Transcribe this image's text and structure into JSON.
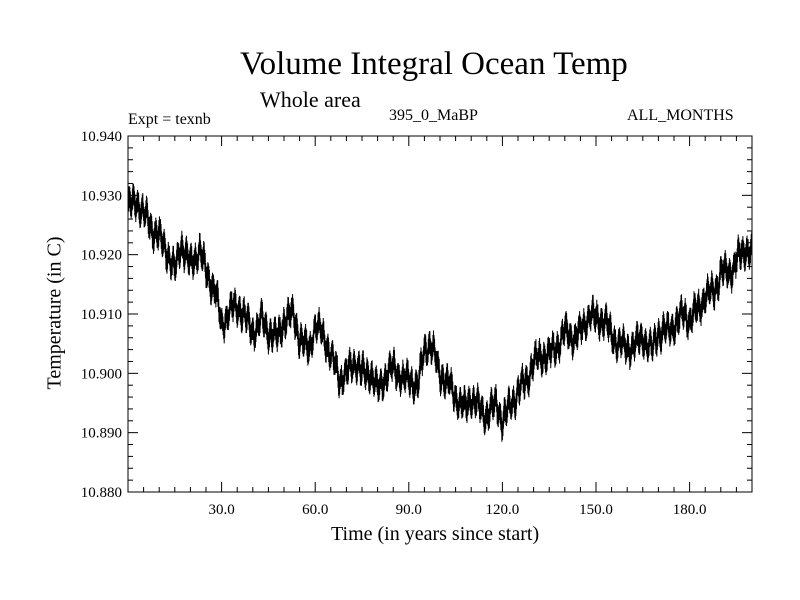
{
  "chart_data": {
    "type": "line",
    "title": "Volume Integral Ocean Temp",
    "subtitle": "Whole area",
    "annotations": {
      "left": "Expt = texnb",
      "center": "395_0_MaBP",
      "right": "ALL_MONTHS"
    },
    "xlabel": "Time (in years since start)",
    "ylabel": "Temperature (in C)",
    "xlim": [
      0,
      200
    ],
    "ylim": [
      10.88,
      10.94
    ],
    "xticks": [
      30,
      60,
      90,
      120,
      150,
      180
    ],
    "xtick_labels": [
      "30.0",
      "60.0",
      "90.0",
      "120.0",
      "150.0",
      "180.0"
    ],
    "yticks": [
      10.88,
      10.89,
      10.9,
      10.91,
      10.92,
      10.93,
      10.94
    ],
    "ytick_labels": [
      "10.880",
      "10.890",
      "10.900",
      "10.910",
      "10.920",
      "10.930",
      "10.940"
    ],
    "series": [
      {
        "name": "Volume integral ocean temperature",
        "x": [
          0,
          3,
          5,
          8,
          10,
          13,
          15,
          17,
          20,
          23,
          25,
          28,
          30,
          33,
          36,
          40,
          43,
          45,
          48,
          50,
          53,
          55,
          58,
          60,
          63,
          65,
          68,
          70,
          73,
          75,
          78,
          80,
          83,
          85,
          88,
          90,
          93,
          95,
          97,
          100,
          103,
          105,
          108,
          110,
          113,
          115,
          118,
          120,
          123,
          125,
          128,
          130,
          133,
          135,
          138,
          140,
          143,
          145,
          148,
          150,
          153,
          155,
          158,
          160,
          163,
          165,
          168,
          170,
          173,
          175,
          178,
          180,
          183,
          185,
          188,
          190,
          193,
          195,
          198,
          200
        ],
        "values": [
          10.928,
          10.929,
          10.927,
          10.924,
          10.923,
          10.92,
          10.917,
          10.922,
          10.918,
          10.921,
          10.917,
          10.914,
          10.908,
          10.911,
          10.911,
          10.907,
          10.909,
          10.907,
          10.906,
          10.909,
          10.91,
          10.906,
          10.904,
          10.908,
          10.906,
          10.903,
          10.899,
          10.9,
          10.902,
          10.9,
          10.9,
          10.897,
          10.9,
          10.901,
          10.899,
          10.899,
          10.898,
          10.904,
          10.905,
          10.9,
          10.898,
          10.896,
          10.894,
          10.896,
          10.894,
          10.893,
          10.895,
          10.892,
          10.895,
          10.897,
          10.899,
          10.902,
          10.903,
          10.903,
          10.905,
          10.907,
          10.906,
          10.907,
          10.91,
          10.909,
          10.909,
          10.906,
          10.905,
          10.904,
          10.905,
          10.906,
          10.904,
          10.907,
          10.907,
          10.908,
          10.91,
          10.909,
          10.911,
          10.913,
          10.914,
          10.917,
          10.917,
          10.919,
          10.921,
          10.92
        ]
      }
    ]
  }
}
